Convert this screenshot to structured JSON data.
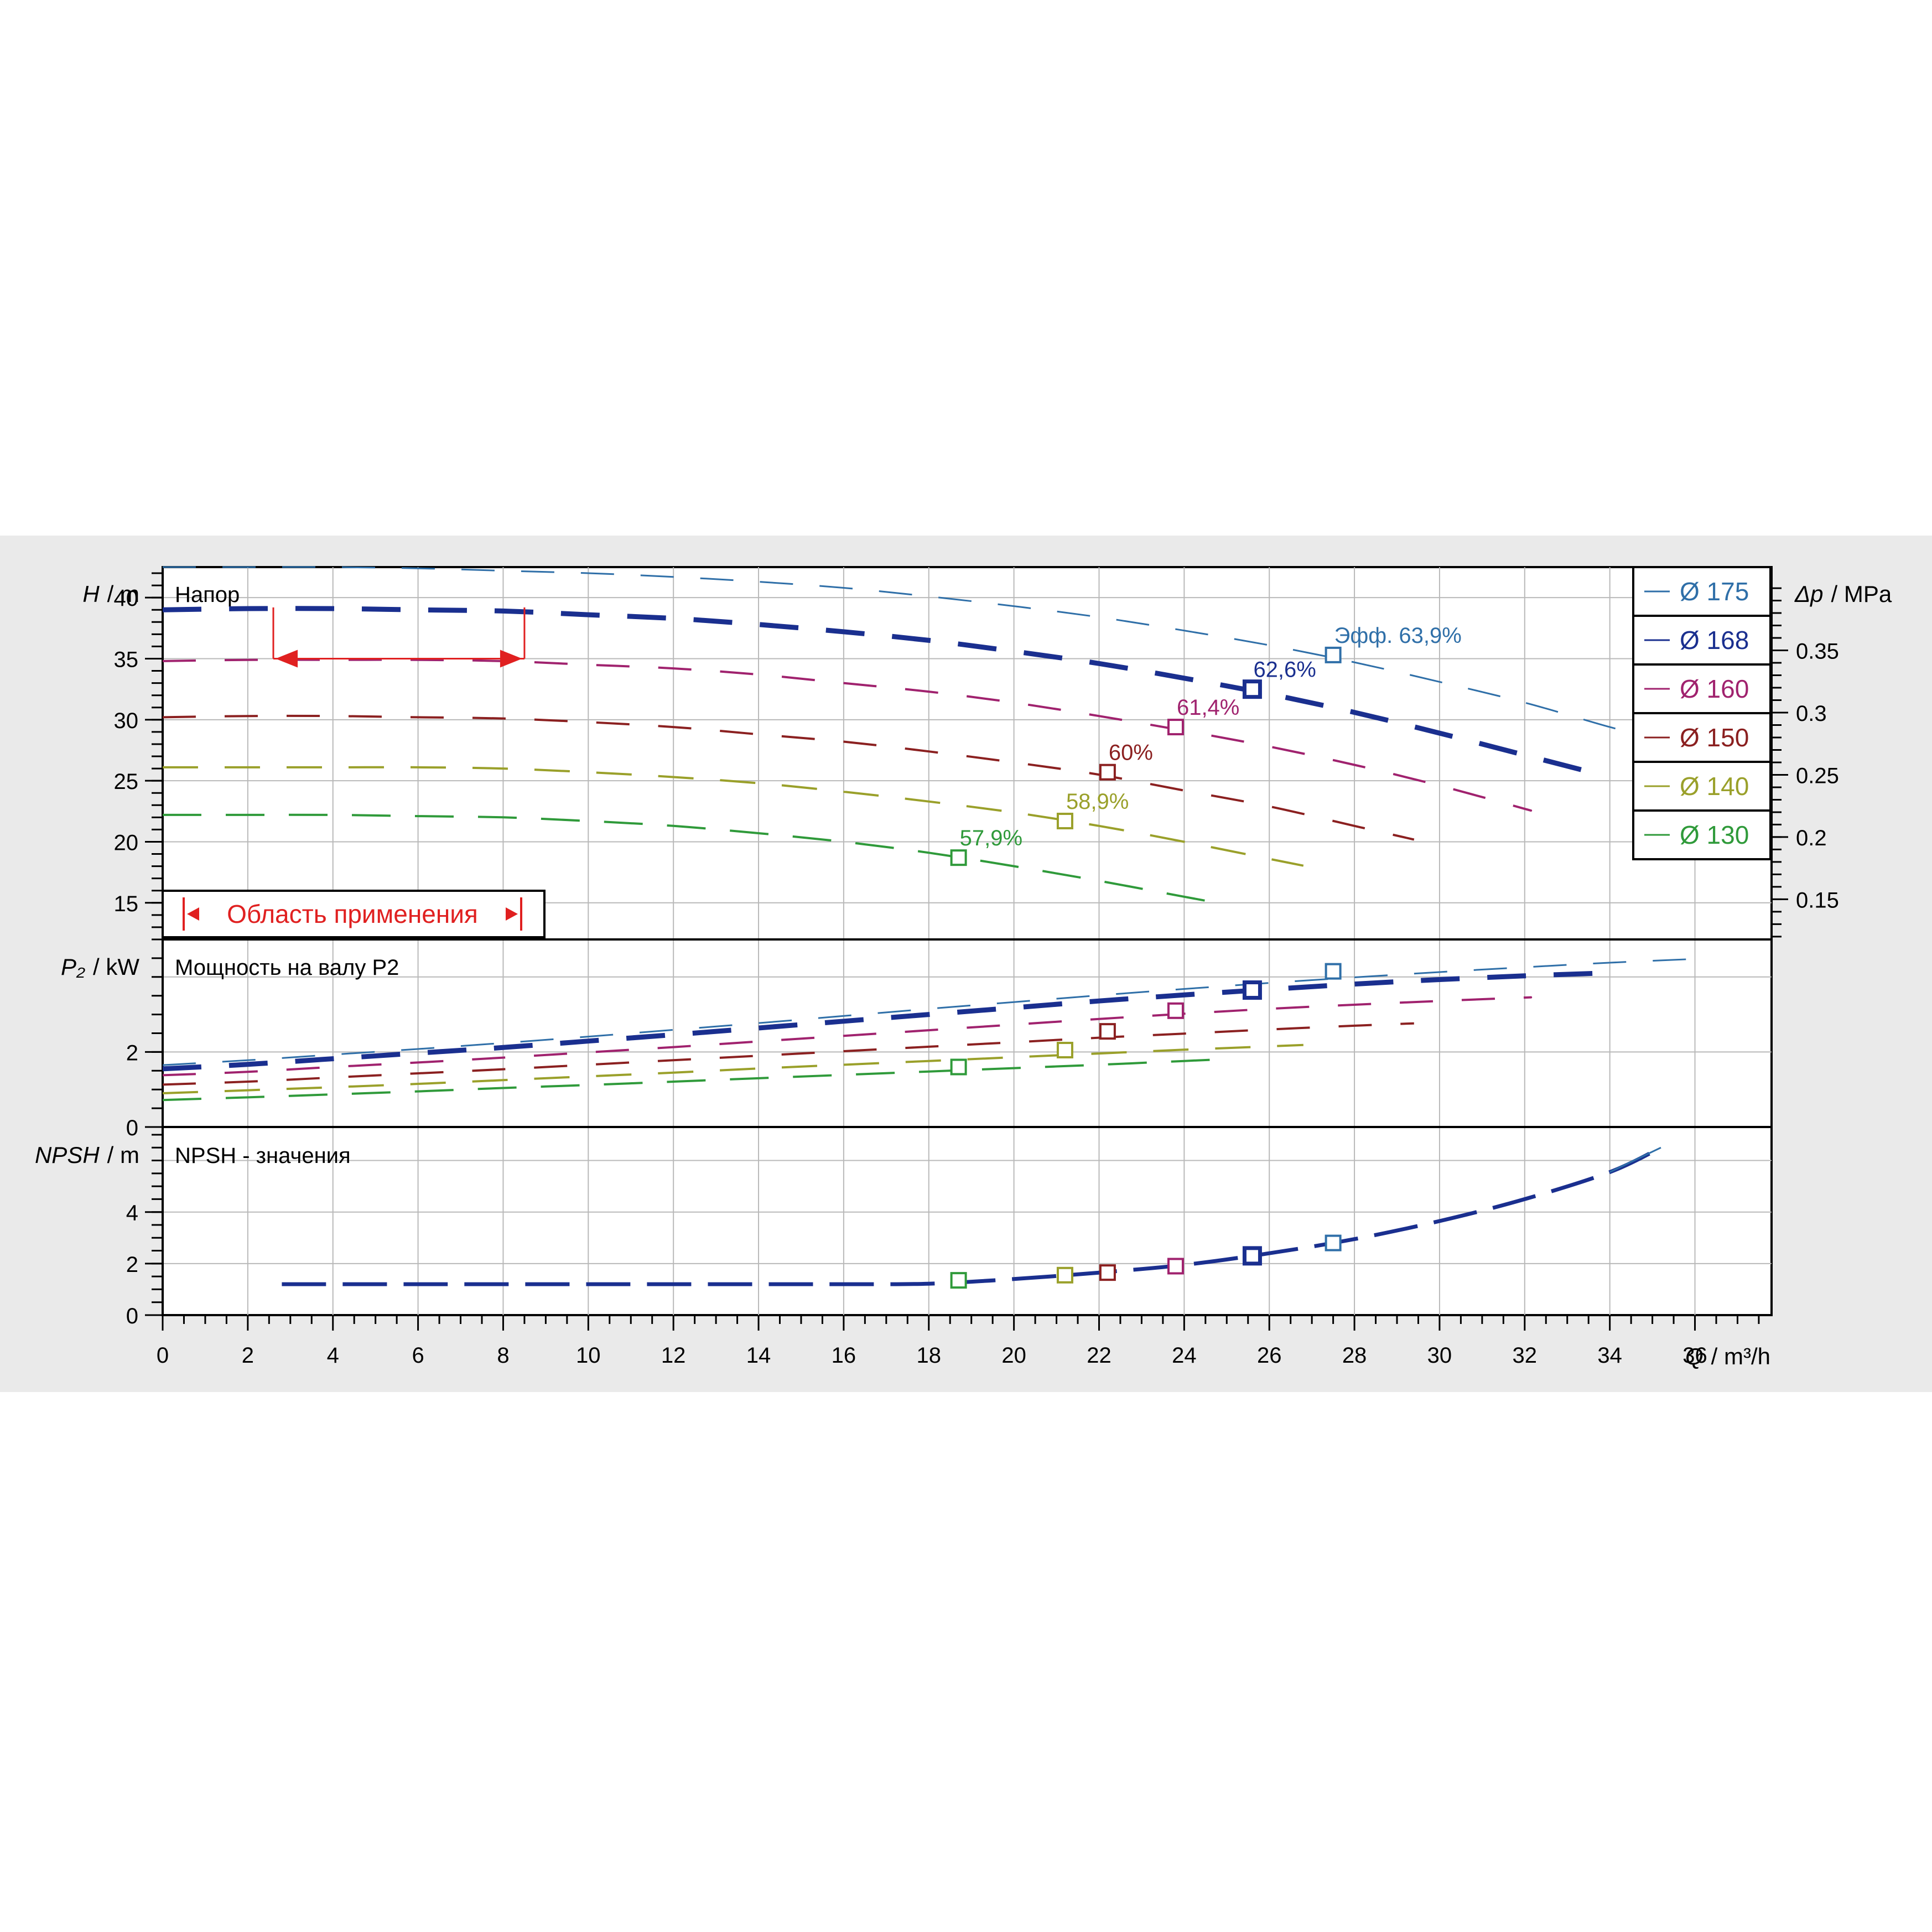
{
  "colors": {
    "background": "#eaeaea",
    "plot_bg": "#ffffff",
    "grid": "#b9b9b9",
    "range_marker": "#e02020",
    "diameters": {
      "175": "#2f6fa8",
      "168": "#1a2f8f",
      "160": "#a0226e",
      "150": "#8b2020",
      "140": "#9aa02a",
      "130": "#2f9a3a"
    }
  },
  "chart_data": [
    {
      "id": "head",
      "type": "line",
      "panel_title": "Напор",
      "ylabel_italic": "H",
      "ylabel_unit": "/ m",
      "secondary_ylabel_italic": "Δp",
      "secondary_ylabel_unit": "/ MPa",
      "ylim": [
        12,
        42.5
      ],
      "yticks": [
        15,
        20,
        25,
        30,
        35,
        40
      ],
      "secondary_yticks": [
        0.15,
        0.2,
        0.25,
        0.3,
        0.35
      ],
      "x": [
        0,
        2,
        4,
        6,
        8,
        10,
        12,
        14,
        16,
        18,
        20,
        22,
        24,
        26,
        28,
        30,
        32,
        34,
        36
      ],
      "series": [
        {
          "name": "Ø 175",
          "key": "175",
          "values": [
            42.5,
            42.5,
            42.5,
            42.4,
            42.2,
            42.0,
            41.7,
            41.3,
            40.8,
            40.1,
            39.3,
            38.4,
            37.3,
            36.1,
            34.7,
            33.1,
            31.4,
            29.4,
            27.6
          ],
          "x_end": 35.3
        },
        {
          "name": "Ø 168",
          "key": "168",
          "values": [
            39.0,
            39.1,
            39.1,
            39.0,
            38.9,
            38.6,
            38.3,
            37.8,
            37.2,
            36.5,
            35.6,
            34.6,
            33.4,
            32.1,
            30.6,
            28.9,
            27.1,
            25.3,
            null
          ],
          "x_end": 33.9
        },
        {
          "name": "Ø 160",
          "key": "160",
          "values": [
            34.8,
            34.9,
            34.9,
            34.9,
            34.8,
            34.5,
            34.2,
            33.7,
            33.0,
            32.3,
            31.4,
            30.3,
            29.1,
            27.8,
            26.3,
            24.6,
            22.7,
            null,
            null
          ],
          "x_end": 32.0
        },
        {
          "name": "Ø 150",
          "key": "150",
          "values": [
            30.2,
            30.3,
            30.3,
            30.2,
            30.1,
            29.8,
            29.4,
            28.8,
            28.2,
            27.4,
            26.5,
            25.5,
            24.2,
            22.9,
            21.3,
            19.7,
            null,
            null,
            null
          ],
          "x_end": 29.4
        },
        {
          "name": "Ø 140",
          "key": "140",
          "values": [
            26.1,
            26.1,
            26.1,
            26.1,
            26.0,
            25.7,
            25.3,
            24.8,
            24.1,
            23.3,
            22.4,
            21.3,
            20.0,
            18.6,
            17.2,
            null,
            null,
            null,
            null
          ],
          "x_end": 26.8
        },
        {
          "name": "Ø 130",
          "key": "130",
          "values": [
            22.2,
            22.2,
            22.2,
            22.1,
            22.0,
            21.7,
            21.3,
            20.7,
            20.0,
            19.1,
            18.0,
            16.8,
            15.5,
            null,
            null,
            null,
            null,
            null,
            null
          ],
          "x_end": 24.6
        }
      ],
      "bep_points": [
        {
          "key": "175",
          "q": 27.5,
          "h": 35.3,
          "label": "Эфф.  63,9%"
        },
        {
          "key": "168",
          "q": 25.6,
          "h": 32.5,
          "label": "62,6%"
        },
        {
          "key": "160",
          "q": 23.8,
          "h": 29.4,
          "label": "61,4%"
        },
        {
          "key": "150",
          "q": 22.2,
          "h": 25.7,
          "label": "60%"
        },
        {
          "key": "140",
          "q": 21.2,
          "h": 21.7,
          "label": "58,9%"
        },
        {
          "key": "130",
          "q": 18.7,
          "h": 18.7,
          "label": "57,9%"
        }
      ],
      "application_range": {
        "q_min": 2.6,
        "q_max": 8.5,
        "h": 35.0,
        "label": "Область применения"
      }
    },
    {
      "id": "power",
      "type": "line",
      "panel_title": "Мощность на валу P2",
      "ylabel_italic": "P₂",
      "ylabel_unit": "/ kW",
      "ylim": [
        0,
        5
      ],
      "yticks": [
        0,
        2
      ],
      "x": [
        0,
        2,
        4,
        6,
        8,
        10,
        12,
        14,
        16,
        18,
        20,
        22,
        24,
        26,
        28,
        30,
        32,
        34,
        36
      ],
      "series": [
        {
          "name": "Ø 175",
          "key": "175",
          "values": [
            1.65,
            1.78,
            1.93,
            2.08,
            2.24,
            2.41,
            2.59,
            2.77,
            2.96,
            3.15,
            3.33,
            3.51,
            3.68,
            3.84,
            3.99,
            4.13,
            4.26,
            4.38,
            4.48
          ],
          "x_end": 35.8
        },
        {
          "name": "Ø 168",
          "key": "168",
          "values": [
            1.55,
            1.67,
            1.82,
            1.97,
            2.12,
            2.29,
            2.46,
            2.64,
            2.82,
            3.0,
            3.18,
            3.36,
            3.52,
            3.67,
            3.81,
            3.93,
            4.03,
            4.11,
            null
          ],
          "x_end": 33.9
        },
        {
          "name": "Ø 160",
          "key": "160",
          "values": [
            1.38,
            1.47,
            1.6,
            1.72,
            1.85,
            1.99,
            2.13,
            2.28,
            2.43,
            2.58,
            2.73,
            2.88,
            3.02,
            3.15,
            3.26,
            3.36,
            3.45,
            null,
            null
          ],
          "x_end": 32.0
        },
        {
          "name": "Ø 150",
          "key": "150",
          "values": [
            1.13,
            1.21,
            1.32,
            1.43,
            1.54,
            1.66,
            1.78,
            1.9,
            2.02,
            2.14,
            2.26,
            2.38,
            2.49,
            2.6,
            2.7,
            2.79,
            null,
            null,
            null
          ],
          "x_end": 29.4
        },
        {
          "name": "Ø 140",
          "key": "140",
          "values": [
            0.9,
            0.98,
            1.06,
            1.15,
            1.25,
            1.35,
            1.45,
            1.56,
            1.66,
            1.76,
            1.86,
            1.96,
            2.06,
            2.15,
            2.24,
            null,
            null,
            null,
            null
          ],
          "x_end": 26.8
        },
        {
          "name": "Ø 130",
          "key": "130",
          "values": [
            0.72,
            0.79,
            0.87,
            0.95,
            1.04,
            1.12,
            1.21,
            1.3,
            1.39,
            1.48,
            1.57,
            1.66,
            1.76,
            null,
            null,
            null,
            null,
            null,
            null
          ],
          "x_end": 24.6
        }
      ],
      "bep_points": [
        {
          "key": "175",
          "q": 27.5,
          "p": 4.15
        },
        {
          "key": "168",
          "q": 25.6,
          "p": 3.65
        },
        {
          "key": "160",
          "q": 23.8,
          "p": 3.1
        },
        {
          "key": "150",
          "q": 22.2,
          "p": 2.55
        },
        {
          "key": "140",
          "q": 21.2,
          "p": 2.05
        },
        {
          "key": "130",
          "q": 18.7,
          "p": 1.6
        }
      ]
    },
    {
      "id": "npsh",
      "type": "line",
      "panel_title": "NPSH - значения",
      "ylabel_italic": "NPSH",
      "ylabel_unit": "/ m",
      "ylim": [
        0,
        7.3
      ],
      "yticks": [
        0,
        2,
        4
      ],
      "x": [
        2.8,
        6,
        10,
        14,
        16,
        18,
        20,
        22,
        24,
        26,
        28,
        30,
        32,
        34,
        35.2
      ],
      "values": [
        1.2,
        1.2,
        1.2,
        1.2,
        1.2,
        1.22,
        1.4,
        1.65,
        1.95,
        2.4,
        2.95,
        3.65,
        4.5,
        5.55,
        6.5
      ],
      "bep_points": [
        {
          "key": "175",
          "q": 27.5,
          "v": 2.8
        },
        {
          "key": "168",
          "q": 25.6,
          "v": 2.3
        },
        {
          "key": "160",
          "q": 23.8,
          "v": 1.9
        },
        {
          "key": "150",
          "q": 22.2,
          "v": 1.65
        },
        {
          "key": "140",
          "q": 21.2,
          "v": 1.55
        },
        {
          "key": "130",
          "q": 18.7,
          "v": 1.35
        }
      ]
    }
  ],
  "x_axis": {
    "label_italic": "Q",
    "label_unit": "/ m³/h",
    "xlim": [
      0,
      37.8
    ],
    "ticks": [
      0,
      2,
      4,
      6,
      8,
      10,
      12,
      14,
      16,
      18,
      20,
      22,
      24,
      26,
      28,
      30,
      32,
      34,
      36
    ]
  },
  "legend": {
    "placement": "top-right",
    "entries": [
      {
        "key": "175",
        "label": "Ø 175"
      },
      {
        "key": "168",
        "label": "Ø 168"
      },
      {
        "key": "160",
        "label": "Ø 160"
      },
      {
        "key": "150",
        "label": "Ø 150"
      },
      {
        "key": "140",
        "label": "Ø 140"
      },
      {
        "key": "130",
        "label": "Ø 130"
      }
    ]
  }
}
